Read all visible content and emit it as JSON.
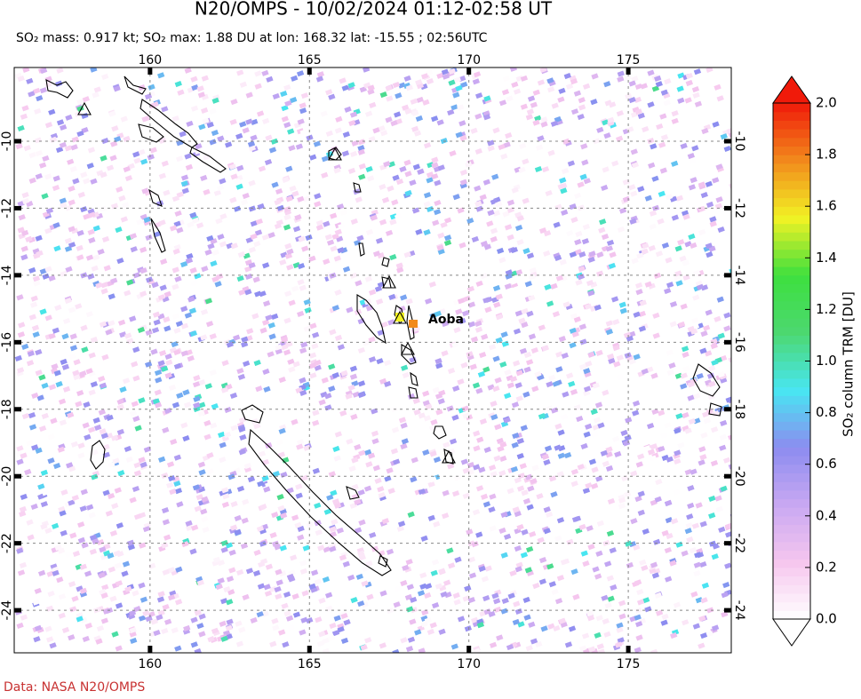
{
  "chart_data": {
    "type": "map",
    "title": "N20/OMPS - 10/02/2024 01:12-02:58 UT",
    "subtitle": "SO₂ mass: 0.917 kt; SO₂ max: 1.88 DU at lon: 168.32 lat: -15.55 ; 02:56UTC",
    "xlim": [
      155.74,
      178.23
    ],
    "ylim": [
      -25.27,
      -7.8
    ],
    "xticks": [
      160,
      165,
      170,
      175
    ],
    "yticks": [
      -10,
      -12,
      -14,
      -16,
      -18,
      -20,
      -22,
      -24
    ],
    "grid": true,
    "annotation": "Aoba",
    "colorbar": {
      "label": "SO₂ column TRM [DU]",
      "lim": [
        0,
        2
      ],
      "ticks": [
        {
          "value": 0,
          "label": "0.0"
        },
        {
          "value": 0.2,
          "label": "0.2"
        },
        {
          "value": 0.4,
          "label": "0.4"
        },
        {
          "value": 0.6,
          "label": "0.6"
        },
        {
          "value": 0.8,
          "label": "0.8"
        },
        {
          "value": 1,
          "label": "1.0"
        },
        {
          "value": 1.2,
          "label": "1.2"
        },
        {
          "value": 1.4,
          "label": "1.4"
        },
        {
          "value": 1.6,
          "label": "1.6"
        },
        {
          "value": 1.8,
          "label": "1.8"
        },
        {
          "value": 2,
          "label": "2.0"
        }
      ],
      "colormap": [
        "#ffffff",
        "#f6c6ee",
        "#c8a8f2",
        "#8c8cf0",
        "#48e6f2",
        "#4cd870",
        "#3ee03e",
        "#f2f224",
        "#f28a1c",
        "#f01a0a"
      ]
    },
    "footer": "Data: NASA N20/OMPS"
  }
}
